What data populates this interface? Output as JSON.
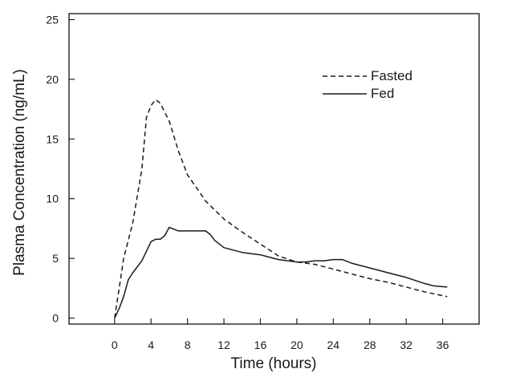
{
  "chart_data": {
    "type": "line",
    "title": "",
    "xlabel": "Time (hours)",
    "ylabel": "Plasma Concentration (ng/mL)",
    "xlim": [
      -5,
      40
    ],
    "ylim": [
      -0.5,
      25.5
    ],
    "xticks": [
      0,
      4,
      8,
      12,
      16,
      20,
      24,
      28,
      32,
      36
    ],
    "yticks": [
      0,
      5,
      10,
      15,
      20,
      25
    ],
    "grid": false,
    "legend": "top-right",
    "series": [
      {
        "name": "Fasted",
        "style": "dashed",
        "x": [
          0,
          0.5,
          1,
          2,
          3,
          3.5,
          4,
          4.5,
          5,
          6,
          7,
          8,
          10,
          12,
          14,
          16,
          18,
          20,
          22,
          24,
          26,
          28,
          30,
          32,
          34,
          36.5
        ],
        "y": [
          0,
          2.5,
          5,
          8,
          12.5,
          16.8,
          17.8,
          18.3,
          18,
          16.5,
          14,
          12,
          9.8,
          8.3,
          7.2,
          6.2,
          5.2,
          4.7,
          4.5,
          4.1,
          3.7,
          3.3,
          3,
          2.6,
          2.2,
          1.8
        ]
      },
      {
        "name": "Fed",
        "style": "solid",
        "x": [
          0,
          0.5,
          1,
          1.5,
          2,
          3,
          4,
          4.5,
          5,
          5.5,
          6,
          7,
          8,
          9,
          10,
          10.5,
          11,
          12,
          13,
          14,
          15,
          16,
          17,
          18,
          19,
          20,
          21,
          22,
          23,
          24,
          25,
          26,
          28,
          30,
          32,
          34,
          35,
          36.5
        ],
        "y": [
          0,
          0.8,
          1.8,
          3.2,
          3.8,
          4.8,
          6.4,
          6.6,
          6.6,
          6.9,
          7.6,
          7.3,
          7.3,
          7.3,
          7.3,
          7.0,
          6.5,
          5.9,
          5.7,
          5.5,
          5.4,
          5.3,
          5.1,
          4.9,
          4.8,
          4.7,
          4.7,
          4.8,
          4.8,
          4.9,
          4.9,
          4.6,
          4.2,
          3.8,
          3.4,
          2.9,
          2.7,
          2.6
        ]
      }
    ]
  }
}
